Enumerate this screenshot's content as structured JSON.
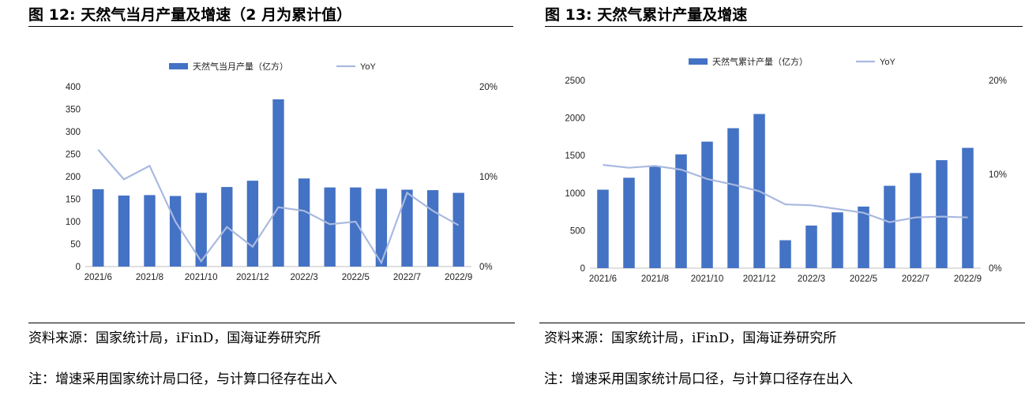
{
  "left": {
    "title": "图 12: 天然气当月产量及增速（2 月为累计值）",
    "source": "资料来源：国家统计局，iFinD，国海证券研究所",
    "note": "注：增速采用国家统计局口径，与计算口径存在出入"
  },
  "right": {
    "title": "图 13: 天然气累计产量及增速",
    "source": "资料来源：国家统计局，iFinD，国海证券研究所",
    "note": "注：增速采用国家统计局口径，与计算口径存在出入"
  },
  "colors": {
    "bar": "#4472C4",
    "line": "#A9B9E0"
  },
  "chart_data": [
    {
      "type": "bar",
      "categories": [
        "2021/6",
        "2021/7",
        "2021/8",
        "2021/9",
        "2021/10",
        "2021/11",
        "2021/12",
        "2022/2",
        "2022/3",
        "2022/4",
        "2022/5",
        "2022/6",
        "2022/7",
        "2022/8",
        "2022/9"
      ],
      "x_tick_labels": [
        "2021/6",
        "2021/8",
        "2021/10",
        "2021/12",
        "2022/3",
        "2022/5",
        "2022/7",
        "2022/9"
      ],
      "series": [
        {
          "name": "天然气当月产量（亿方）",
          "type": "bar",
          "axis": "left",
          "values": [
            172,
            158,
            159,
            157,
            164,
            177,
            191,
            372,
            196,
            176,
            176,
            173,
            171,
            170,
            164
          ]
        },
        {
          "name": "YoY",
          "type": "line",
          "axis": "right",
          "values": [
            13.0,
            9.7,
            11.2,
            5.0,
            0.6,
            4.4,
            2.2,
            6.6,
            6.2,
            4.7,
            5.0,
            0.4,
            8.2,
            6.2,
            4.6
          ]
        }
      ],
      "ylim": [
        0,
        400
      ],
      "y_ticks": [
        0,
        50,
        100,
        150,
        200,
        250,
        300,
        350,
        400
      ],
      "y2lim": [
        0,
        20
      ],
      "y2_ticks": [
        "0%",
        "10%",
        "20%"
      ],
      "legend_position": "top"
    },
    {
      "type": "bar",
      "categories": [
        "2021/6",
        "2021/7",
        "2021/8",
        "2021/9",
        "2021/10",
        "2021/11",
        "2021/12",
        "2022/2",
        "2022/3",
        "2022/4",
        "2022/5",
        "2022/6",
        "2022/7",
        "2022/8",
        "2022/9"
      ],
      "x_tick_labels": [
        "2021/6",
        "2021/8",
        "2021/10",
        "2021/12",
        "2022/3",
        "2022/5",
        "2022/7",
        "2022/9"
      ],
      "series": [
        {
          "name": "天然气累计产量（亿方）",
          "type": "bar",
          "axis": "left",
          "values": [
            1045,
            1204,
            1358,
            1515,
            1685,
            1864,
            2053,
            372,
            567,
            743,
            820,
            1097,
            1267,
            1438,
            1602
          ]
        },
        {
          "name": "YoY",
          "type": "line",
          "axis": "right",
          "values": [
            11.0,
            10.7,
            10.9,
            10.5,
            9.5,
            8.9,
            8.2,
            6.8,
            6.7,
            6.3,
            5.9,
            4.9,
            5.4,
            5.5,
            5.4
          ]
        }
      ],
      "ylim": [
        0,
        2500
      ],
      "y_ticks": [
        0,
        500,
        1000,
        1500,
        2000,
        2500
      ],
      "y2lim": [
        0,
        20
      ],
      "y2_ticks": [
        "0%",
        "10%",
        "20%"
      ],
      "legend_position": "top"
    }
  ]
}
